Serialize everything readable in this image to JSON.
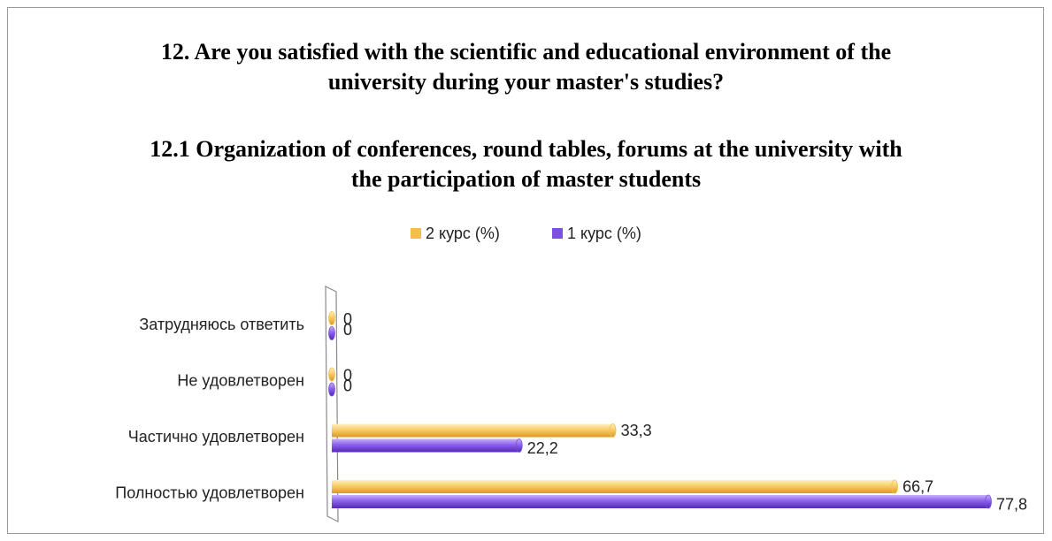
{
  "chart_data": {
    "type": "bar",
    "orientation": "horizontal",
    "title": "12. Are you satisfied with the scientific and educational environment of the university during your master's studies?",
    "subtitle": "12.1 Organization of conferences, round tables, forums at the university with the participation of master students",
    "categories": [
      "Затрудняюсь ответить",
      "Не удовлетворен",
      "Частично удовлетворен",
      "Полностью удовлетворен"
    ],
    "series": [
      {
        "name": "2 курс (%)",
        "color": "#f5c04a",
        "values": [
          0,
          0,
          33.3,
          66.7
        ],
        "value_labels": [
          "0",
          "0",
          "33,3",
          "66,7"
        ]
      },
      {
        "name": "1 курс (%)",
        "color": "#7b4fe0",
        "values": [
          0,
          0,
          22.2,
          77.8
        ],
        "value_labels": [
          "0",
          "0",
          "22,2",
          "77,8"
        ]
      }
    ],
    "xlim": [
      0,
      80
    ],
    "legend": "top"
  }
}
